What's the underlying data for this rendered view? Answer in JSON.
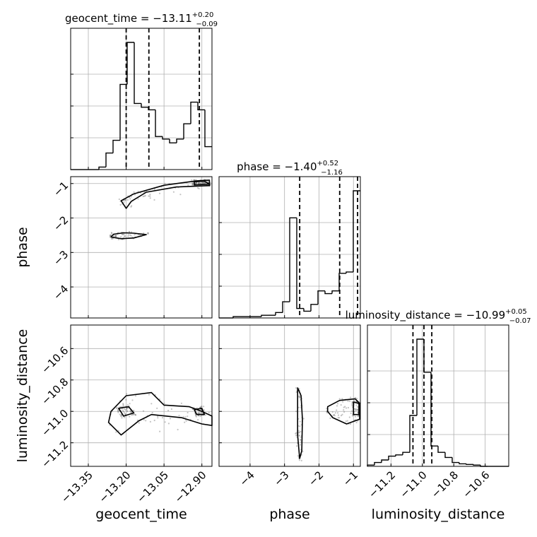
{
  "chart_data": {
    "type": "corner",
    "parameters": [
      "geocent_time",
      "phase",
      "luminosity_distance"
    ],
    "axis_labels": {
      "geocent_time": "geocent_time",
      "phase": "phase",
      "luminosity_distance": "luminosity_distance"
    },
    "ranges": {
      "geocent_time": [
        -13.42,
        -12.86
      ],
      "phase": [
        -4.9,
        -0.8
      ],
      "luminosity_distance": [
        -11.35,
        -10.45
      ]
    },
    "ticks": {
      "geocent_time": [
        -13.35,
        -13.2,
        -13.05,
        -12.9
      ],
      "phase": [
        -4,
        -3,
        -2,
        -1
      ],
      "luminosity_distance": [
        -11.2,
        -11.0,
        -10.8,
        -10.6
      ]
    },
    "tick_labels": {
      "geocent_time": [
        "−13.35",
        "−13.20",
        "−13.05",
        "−12.90"
      ],
      "phase": [
        "−4",
        "−3",
        "−2",
        "−1"
      ],
      "luminosity_distance": [
        "−11.2",
        "−11.0",
        "−10.8",
        "−10.6"
      ]
    },
    "titles": {
      "geocent_time": {
        "prefix": "geocent_time = ",
        "median": "−13.11",
        "plus": "+0.20",
        "minus": "−0.09"
      },
      "phase": {
        "prefix": "phase = ",
        "median": "−1.40",
        "plus": "+0.52",
        "minus": "−1.16"
      },
      "luminosity_distance": {
        "prefix": "luminosity_distance = ",
        "median": "−10.99",
        "plus": "+0.05",
        "minus": "−0.07"
      }
    },
    "quantiles": {
      "geocent_time": [
        -13.2,
        -13.11,
        -12.91
      ],
      "phase": [
        -2.56,
        -1.4,
        -0.88
      ],
      "luminosity_distance": [
        -11.06,
        -10.99,
        -10.94
      ]
    },
    "histograms": {
      "geocent_time": {
        "edges": [
          -13.42,
          -13.392,
          -13.364,
          -13.336,
          -13.308,
          -13.28,
          -13.252,
          -13.224,
          -13.196,
          -13.168,
          -13.14,
          -13.112,
          -13.084,
          -13.056,
          -13.028,
          -13.0,
          -12.972,
          -12.944,
          -12.916,
          -12.888,
          -12.86
        ],
        "counts": [
          0,
          0,
          0,
          0,
          0.02,
          0.13,
          0.23,
          0.67,
          1.0,
          0.52,
          0.49,
          0.47,
          0.26,
          0.24,
          0.21,
          0.24,
          0.36,
          0.53,
          0.47,
          0.18
        ]
      },
      "phase": {
        "edges": [
          -4.9,
          -4.695,
          -4.49,
          -4.285,
          -4.08,
          -3.875,
          -3.67,
          -3.465,
          -3.26,
          -3.055,
          -2.85,
          -2.645,
          -2.44,
          -2.235,
          -2.03,
          -1.825,
          -1.62,
          -1.415,
          -1.21,
          -1.005,
          -0.8
        ],
        "counts": [
          0,
          0,
          0.01,
          0.01,
          0.01,
          0.01,
          0.02,
          0.02,
          0.04,
          0.12,
          0.74,
          0.07,
          0.05,
          0.1,
          0.2,
          0.18,
          0.2,
          0.33,
          0.34,
          0.94
        ]
      },
      "luminosity_distance": {
        "edges": [
          -11.35,
          -11.305,
          -11.26,
          -11.215,
          -11.17,
          -11.125,
          -11.08,
          -11.035,
          -10.99,
          -10.945,
          -10.9,
          -10.855,
          -10.81,
          -10.765,
          -10.72,
          -10.675,
          -10.63,
          -10.585,
          -10.54,
          -10.495,
          -10.45
        ],
        "counts": [
          0.01,
          0.03,
          0.05,
          0.08,
          0.09,
          0.11,
          0.4,
          1.0,
          0.74,
          0.16,
          0.11,
          0.07,
          0.03,
          0.02,
          0.015,
          0.01,
          0,
          0,
          0,
          0
        ]
      }
    },
    "density_2d": {
      "phase_vs_geocent_time": [
        {
          "level": 2,
          "points": [
            [
              -13.25,
              -2.47
            ],
            [
              -13.21,
              -2.43
            ],
            [
              -13.17,
              -2.44
            ],
            [
              -13.12,
              -2.48
            ],
            [
              -13.17,
              -2.58
            ],
            [
              -13.22,
              -2.6
            ],
            [
              -13.26,
              -2.55
            ]
          ]
        },
        {
          "level": 1,
          "points": [
            [
              -13.22,
              -1.5
            ],
            [
              -13.17,
              -1.3
            ],
            [
              -13.05,
              -1.05
            ],
            [
              -12.92,
              -0.92
            ],
            [
              -12.87,
              -0.9
            ],
            [
              -12.87,
              -1.06
            ],
            [
              -13.0,
              -1.1
            ],
            [
              -13.12,
              -1.25
            ],
            [
              -13.18,
              -1.52
            ],
            [
              -13.2,
              -1.72
            ]
          ]
        },
        {
          "level": 2,
          "points": [
            [
              -12.93,
              -0.95
            ],
            [
              -12.89,
              -0.93
            ],
            [
              -12.87,
              -1.02
            ],
            [
              -12.93,
              -1.04
            ]
          ]
        }
      ],
      "luminosity_distance_vs_geocent_time": [
        {
          "level": 1,
          "points": [
            [
              -13.26,
              -11.0
            ],
            [
              -13.2,
              -10.9
            ],
            [
              -13.1,
              -10.88
            ],
            [
              -13.05,
              -10.96
            ],
            [
              -12.95,
              -10.97
            ],
            [
              -12.9,
              -11.0
            ],
            [
              -12.86,
              -11.03
            ],
            [
              -12.86,
              -11.09
            ],
            [
              -12.9,
              -11.08
            ],
            [
              -12.98,
              -11.04
            ],
            [
              -13.1,
              -11.02
            ],
            [
              -13.15,
              -11.06
            ],
            [
              -13.22,
              -11.15
            ],
            [
              -13.27,
              -11.07
            ]
          ]
        },
        {
          "level": 2,
          "points": [
            [
              -13.23,
              -10.98
            ],
            [
              -13.19,
              -10.97
            ],
            [
              -13.17,
              -11.01
            ],
            [
              -13.21,
              -11.03
            ]
          ]
        },
        {
          "level": 2,
          "points": [
            [
              -12.93,
              -10.99
            ],
            [
              -12.9,
              -10.98
            ],
            [
              -12.89,
              -11.02
            ],
            [
              -12.92,
              -11.02
            ]
          ]
        }
      ],
      "luminosity_distance_vs_phase": [
        {
          "level": 1,
          "points": [
            [
              -2.62,
              -10.85
            ],
            [
              -2.52,
              -10.9
            ],
            [
              -2.48,
              -11.05
            ],
            [
              -2.5,
              -11.25
            ],
            [
              -2.56,
              -11.3
            ],
            [
              -2.62,
              -11.15
            ]
          ]
        },
        {
          "level": 1,
          "points": [
            [
              -1.75,
              -10.97
            ],
            [
              -1.4,
              -10.93
            ],
            [
              -0.95,
              -10.92
            ],
            [
              -0.82,
              -10.95
            ],
            [
              -0.82,
              -11.05
            ],
            [
              -1.2,
              -11.08
            ],
            [
              -1.6,
              -11.04
            ],
            [
              -1.75,
              -11.0
            ]
          ]
        },
        {
          "level": 2,
          "points": [
            [
              -1.0,
              -10.94
            ],
            [
              -0.84,
              -10.95
            ],
            [
              -0.84,
              -11.02
            ],
            [
              -1.0,
              -11.02
            ]
          ]
        }
      ]
    }
  }
}
